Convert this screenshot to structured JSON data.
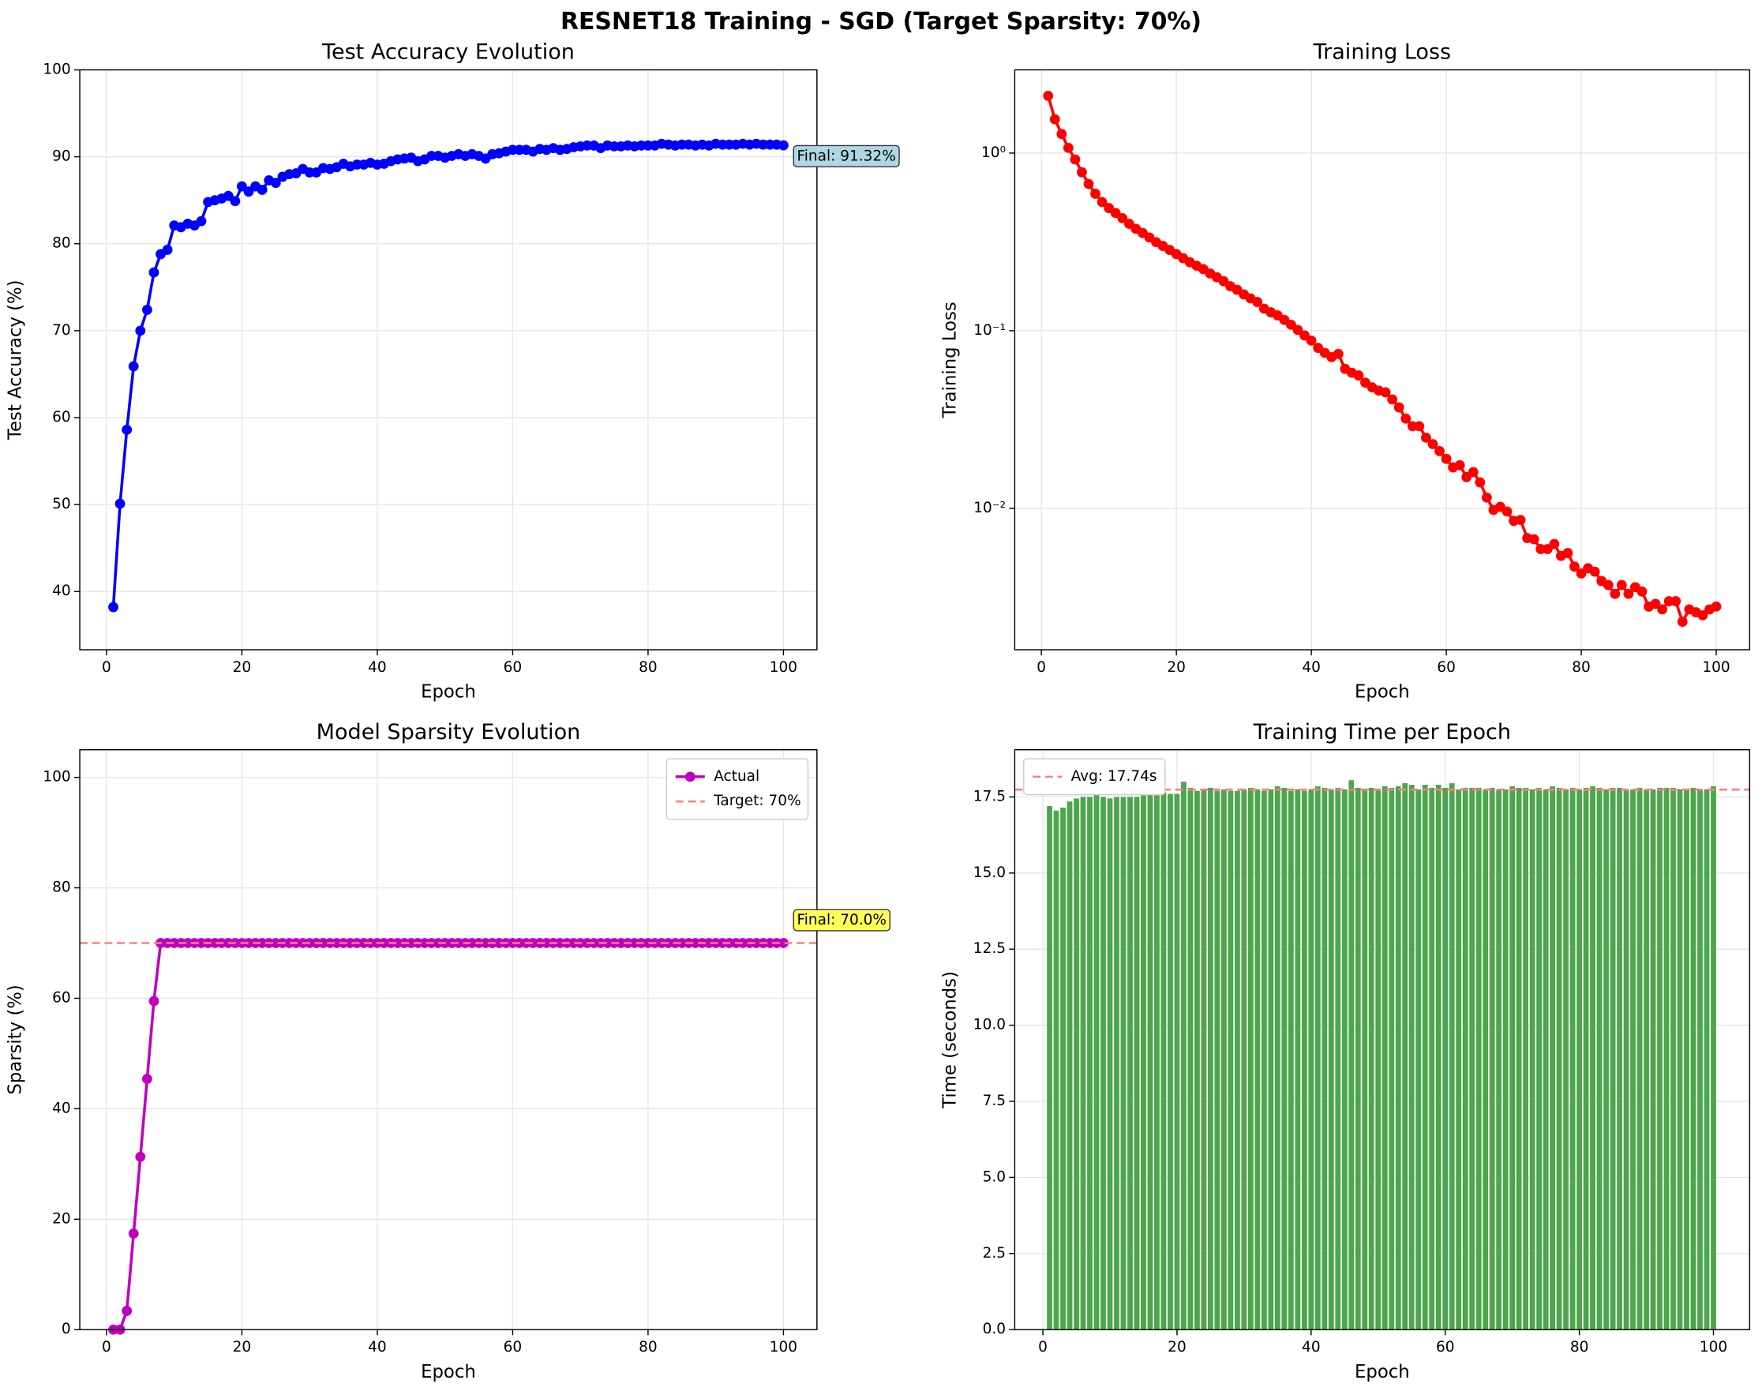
{
  "title": "RESNET18 Training - SGD (Target Sparsity: 70%)",
  "chart_data": [
    {
      "type": "line",
      "title": "Test Accuracy Evolution",
      "x_label": "Epoch",
      "y_label": "Test Accuracy (%)",
      "x": [
        1,
        2,
        3,
        4,
        5,
        6,
        7,
        8,
        9,
        10,
        11,
        12,
        13,
        14,
        15,
        16,
        17,
        18,
        19,
        20,
        21,
        22,
        23,
        24,
        25,
        26,
        27,
        28,
        29,
        30,
        31,
        32,
        33,
        34,
        35,
        36,
        37,
        38,
        39,
        40,
        41,
        42,
        43,
        44,
        45,
        46,
        47,
        48,
        49,
        50,
        51,
        52,
        53,
        54,
        55,
        56,
        57,
        58,
        59,
        60,
        61,
        62,
        63,
        64,
        65,
        66,
        67,
        68,
        69,
        70,
        71,
        72,
        73,
        74,
        75,
        76,
        77,
        78,
        79,
        80,
        81,
        82,
        83,
        84,
        85,
        86,
        87,
        88,
        89,
        90,
        91,
        92,
        93,
        94,
        95,
        96,
        97,
        98,
        99,
        100
      ],
      "values": [
        38.2,
        50.1,
        58.6,
        65.9,
        70.0,
        72.4,
        76.7,
        78.8,
        79.3,
        82.1,
        81.9,
        82.3,
        82.1,
        82.6,
        84.8,
        85.0,
        85.2,
        85.5,
        84.9,
        86.6,
        86.0,
        86.6,
        86.2,
        87.3,
        87.0,
        87.7,
        88.0,
        88.1,
        88.6,
        88.2,
        88.2,
        88.7,
        88.6,
        88.8,
        89.2,
        88.9,
        89.1,
        89.1,
        89.3,
        89.1,
        89.2,
        89.5,
        89.7,
        89.8,
        89.9,
        89.5,
        89.7,
        90.1,
        90.1,
        89.9,
        90.1,
        90.3,
        90.1,
        90.3,
        90.1,
        89.8,
        90.3,
        90.4,
        90.6,
        90.8,
        90.8,
        90.8,
        90.6,
        90.9,
        90.8,
        91.0,
        90.8,
        90.9,
        91.1,
        91.2,
        91.3,
        91.3,
        91.0,
        91.3,
        91.2,
        91.2,
        91.3,
        91.2,
        91.3,
        91.3,
        91.3,
        91.5,
        91.4,
        91.3,
        91.4,
        91.4,
        91.3,
        91.4,
        91.3,
        91.5,
        91.4,
        91.4,
        91.4,
        91.5,
        91.4,
        91.5,
        91.4,
        91.4,
        91.4,
        91.32
      ],
      "color": "#0000ff",
      "xlim": [
        -3.95,
        104.95
      ],
      "ylim": [
        33.3,
        100
      ],
      "xticks": [
        0,
        20,
        40,
        60,
        80,
        100
      ],
      "yticks": [
        40,
        50,
        60,
        70,
        80,
        90,
        100
      ],
      "grid": true,
      "annotation": "Final: 91.32%",
      "annotation_color": "#add8e6"
    },
    {
      "type": "line",
      "title": "Training Loss",
      "x_label": "Epoch",
      "y_label": "Training Loss",
      "log": true,
      "x": [
        1,
        2,
        3,
        4,
        5,
        6,
        7,
        8,
        9,
        10,
        11,
        12,
        13,
        14,
        15,
        16,
        17,
        18,
        19,
        20,
        21,
        22,
        23,
        24,
        25,
        26,
        27,
        28,
        29,
        30,
        31,
        32,
        33,
        34,
        35,
        36,
        37,
        38,
        39,
        40,
        41,
        42,
        43,
        44,
        45,
        46,
        47,
        48,
        49,
        50,
        51,
        52,
        53,
        54,
        55,
        56,
        57,
        58,
        59,
        60,
        61,
        62,
        63,
        64,
        65,
        66,
        67,
        68,
        69,
        70,
        71,
        72,
        73,
        74,
        75,
        76,
        77,
        78,
        79,
        80,
        81,
        82,
        83,
        84,
        85,
        86,
        87,
        88,
        89,
        90,
        91,
        92,
        93,
        94,
        95,
        96,
        97,
        98,
        99,
        100
      ],
      "values": [
        2.1,
        1.55,
        1.28,
        1.07,
        0.92,
        0.78,
        0.67,
        0.59,
        0.53,
        0.49,
        0.46,
        0.43,
        0.4,
        0.375,
        0.355,
        0.335,
        0.315,
        0.3,
        0.285,
        0.27,
        0.256,
        0.243,
        0.232,
        0.222,
        0.21,
        0.2,
        0.19,
        0.178,
        0.17,
        0.16,
        0.152,
        0.145,
        0.133,
        0.127,
        0.122,
        0.115,
        0.108,
        0.101,
        0.094,
        0.088,
        0.08,
        0.075,
        0.071,
        0.074,
        0.061,
        0.058,
        0.056,
        0.051,
        0.048,
        0.046,
        0.045,
        0.041,
        0.037,
        0.032,
        0.029,
        0.029,
        0.025,
        0.023,
        0.021,
        0.019,
        0.017,
        0.0175,
        0.015,
        0.016,
        0.014,
        0.0115,
        0.0098,
        0.0102,
        0.0096,
        0.0085,
        0.0086,
        0.0068,
        0.0067,
        0.0059,
        0.0059,
        0.0063,
        0.0054,
        0.0056,
        0.0047,
        0.0043,
        0.0046,
        0.0044,
        0.0039,
        0.0037,
        0.0033,
        0.0037,
        0.0033,
        0.0036,
        0.0034,
        0.0028,
        0.0029,
        0.0027,
        0.003,
        0.003,
        0.0023,
        0.0027,
        0.0026,
        0.0025,
        0.0027,
        0.0028
      ],
      "color": "#ff0000",
      "xlim": [
        -3.95,
        104.95
      ],
      "ylim": [
        0.0016,
        2.94
      ],
      "xticks": [
        0,
        20,
        40,
        60,
        80,
        100
      ],
      "yticks": [
        {
          "value": 0.01,
          "label": "10⁻²"
        },
        {
          "value": 0.1,
          "label": "10⁻¹"
        },
        {
          "value": 1,
          "label": "10⁰"
        }
      ],
      "grid": true
    },
    {
      "type": "line",
      "title": "Model Sparsity Evolution",
      "x_label": "Epoch",
      "y_label": "Sparsity (%)",
      "x": [
        1,
        2,
        3,
        4,
        5,
        6,
        7,
        8,
        9,
        10,
        11,
        12,
        13,
        14,
        15,
        16,
        17,
        18,
        19,
        20,
        21,
        22,
        23,
        24,
        25,
        26,
        27,
        28,
        29,
        30,
        31,
        32,
        33,
        34,
        35,
        36,
        37,
        38,
        39,
        40,
        41,
        42,
        43,
        44,
        45,
        46,
        47,
        48,
        49,
        50,
        51,
        52,
        53,
        54,
        55,
        56,
        57,
        58,
        59,
        60,
        61,
        62,
        63,
        64,
        65,
        66,
        67,
        68,
        69,
        70,
        71,
        72,
        73,
        74,
        75,
        76,
        77,
        78,
        79,
        80,
        81,
        82,
        83,
        84,
        85,
        86,
        87,
        88,
        89,
        90,
        91,
        92,
        93,
        94,
        95,
        96,
        97,
        98,
        99,
        100
      ],
      "series": [
        {
          "name": "Actual",
          "color": "#bf00bf",
          "values": [
            0,
            0,
            3.4,
            17.4,
            31.3,
            45.4,
            59.5,
            70,
            70,
            70,
            70,
            70,
            70,
            70,
            70,
            70,
            70,
            70,
            70,
            70,
            70,
            70,
            70,
            70,
            70,
            70,
            70,
            70,
            70,
            70,
            70,
            70,
            70,
            70,
            70,
            70,
            70,
            70,
            70,
            70,
            70,
            70,
            70,
            70,
            70,
            70,
            70,
            70,
            70,
            70,
            70,
            70,
            70,
            70,
            70,
            70,
            70,
            70,
            70,
            70,
            70,
            70,
            70,
            70,
            70,
            70,
            70,
            70,
            70,
            70,
            70,
            70,
            70,
            70,
            70,
            70,
            70,
            70,
            70,
            70,
            70,
            70,
            70,
            70,
            70,
            70,
            70,
            70,
            70,
            70,
            70,
            70,
            70,
            70,
            70,
            70,
            70,
            70,
            70,
            70
          ]
        }
      ],
      "hlines": [
        {
          "name": "Target: 70%",
          "value": 70,
          "color": "#ff7f7f"
        }
      ],
      "xlim": [
        -3.95,
        104.95
      ],
      "ylim": [
        0,
        105
      ],
      "xticks": [
        0,
        20,
        40,
        60,
        80,
        100
      ],
      "yticks": [
        0,
        20,
        40,
        60,
        80,
        100
      ],
      "grid": true,
      "legend": "upper right",
      "annotation": "Final: 70.0%",
      "annotation_color": "#ffff55"
    },
    {
      "type": "bar",
      "title": "Training Time per Epoch",
      "x_label": "Epoch",
      "y_label": "Time (seconds)",
      "x": [
        1,
        2,
        3,
        4,
        5,
        6,
        7,
        8,
        9,
        10,
        11,
        12,
        13,
        14,
        15,
        16,
        17,
        18,
        19,
        20,
        21,
        22,
        23,
        24,
        25,
        26,
        27,
        28,
        29,
        30,
        31,
        32,
        33,
        34,
        35,
        36,
        37,
        38,
        39,
        40,
        41,
        42,
        43,
        44,
        45,
        46,
        47,
        48,
        49,
        50,
        51,
        52,
        53,
        54,
        55,
        56,
        57,
        58,
        59,
        60,
        61,
        62,
        63,
        64,
        65,
        66,
        67,
        68,
        69,
        70,
        71,
        72,
        73,
        74,
        75,
        76,
        77,
        78,
        79,
        80,
        81,
        82,
        83,
        84,
        85,
        86,
        87,
        88,
        89,
        90,
        91,
        92,
        93,
        94,
        95,
        96,
        97,
        98,
        99,
        100
      ],
      "values": [
        17.2,
        17.05,
        17.15,
        17.35,
        17.45,
        17.5,
        17.5,
        17.6,
        17.5,
        17.45,
        17.5,
        17.5,
        17.5,
        17.5,
        17.55,
        17.6,
        17.55,
        17.65,
        17.6,
        17.6,
        18.0,
        17.8,
        17.7,
        17.75,
        17.8,
        17.7,
        17.75,
        17.7,
        17.7,
        17.75,
        17.8,
        17.75,
        17.7,
        17.75,
        17.85,
        17.8,
        17.7,
        17.75,
        17.7,
        17.75,
        17.85,
        17.8,
        17.75,
        17.8,
        17.75,
        18.05,
        17.8,
        17.75,
        17.8,
        17.75,
        17.85,
        17.8,
        17.85,
        17.95,
        17.9,
        17.75,
        17.9,
        17.8,
        17.9,
        17.8,
        17.95,
        17.75,
        17.8,
        17.8,
        17.8,
        17.75,
        17.8,
        17.75,
        17.75,
        17.85,
        17.8,
        17.8,
        17.75,
        17.8,
        17.75,
        17.85,
        17.8,
        17.75,
        17.8,
        17.75,
        17.8,
        17.85,
        17.8,
        17.75,
        17.8,
        17.8,
        17.75,
        17.75,
        17.8,
        17.75,
        17.75,
        17.8,
        17.8,
        17.8,
        17.75,
        17.75,
        17.8,
        17.75,
        17.75,
        17.85
      ],
      "color": "#4ca64c",
      "hlines": [
        {
          "name": "Avg: 17.74s",
          "value": 17.74,
          "color": "#ff7f7f"
        }
      ],
      "xlim": [
        -4.2,
        105.4
      ],
      "ylim": [
        0,
        19.05
      ],
      "xticks": [
        0,
        20,
        40,
        60,
        80,
        100
      ],
      "yticks": [
        {
          "value": 0,
          "label": "0.0"
        },
        2.5,
        {
          "value": 5,
          "label": "5.0"
        },
        7.5,
        {
          "value": 10,
          "label": "10.0"
        },
        12.5,
        {
          "value": 15,
          "label": "15.0"
        },
        17.5
      ],
      "grid": true,
      "legend": "upper left"
    }
  ]
}
